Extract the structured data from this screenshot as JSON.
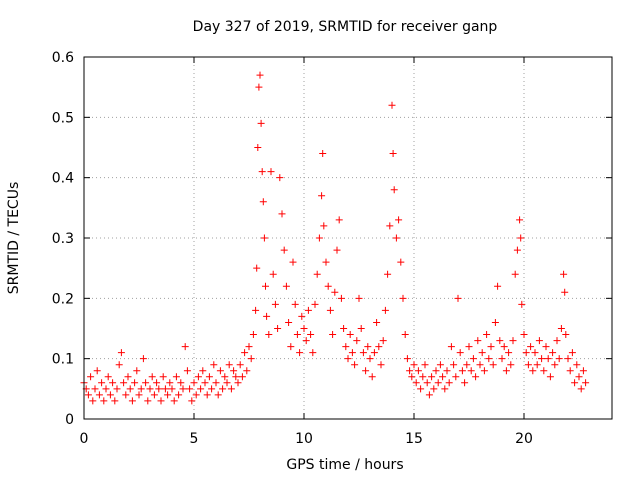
{
  "chart_data": {
    "type": "scatter",
    "title": "Day 327 of 2019, SRMTID for receiver ganp",
    "xlabel": "GPS time / hours",
    "ylabel": "SRMTID / TECUs",
    "xlim": [
      0,
      24
    ],
    "ylim": [
      0,
      0.6
    ],
    "xticks": [
      0,
      5,
      10,
      15,
      20
    ],
    "xtick_labels": [
      "0",
      "5",
      "10",
      "15",
      "20"
    ],
    "yticks": [
      0,
      0.1,
      0.2,
      0.3,
      0.4,
      0.5,
      0.6
    ],
    "ytick_labels": [
      "0",
      "0.1",
      "0.2",
      "0.3",
      "0.4",
      "0.5",
      "0.6"
    ],
    "grid": true,
    "marker": "+",
    "marker_color": "#ff0000",
    "series": [
      {
        "name": "SRMTID",
        "color": "#ff0000",
        "points": [
          [
            0.0,
            0.06
          ],
          [
            0.1,
            0.05
          ],
          [
            0.2,
            0.04
          ],
          [
            0.3,
            0.07
          ],
          [
            0.4,
            0.03
          ],
          [
            0.5,
            0.05
          ],
          [
            0.6,
            0.08
          ],
          [
            0.7,
            0.04
          ],
          [
            0.8,
            0.06
          ],
          [
            0.9,
            0.03
          ],
          [
            1.0,
            0.05
          ],
          [
            1.1,
            0.07
          ],
          [
            1.2,
            0.04
          ],
          [
            1.3,
            0.06
          ],
          [
            1.4,
            0.03
          ],
          [
            1.5,
            0.05
          ],
          [
            1.6,
            0.09
          ],
          [
            1.7,
            0.11
          ],
          [
            1.8,
            0.06
          ],
          [
            1.9,
            0.04
          ],
          [
            2.0,
            0.07
          ],
          [
            2.1,
            0.05
          ],
          [
            2.2,
            0.03
          ],
          [
            2.3,
            0.06
          ],
          [
            2.4,
            0.08
          ],
          [
            2.5,
            0.04
          ],
          [
            2.6,
            0.05
          ],
          [
            2.7,
            0.1
          ],
          [
            2.8,
            0.06
          ],
          [
            2.9,
            0.03
          ],
          [
            3.0,
            0.05
          ],
          [
            3.1,
            0.07
          ],
          [
            3.2,
            0.04
          ],
          [
            3.3,
            0.06
          ],
          [
            3.4,
            0.05
          ],
          [
            3.5,
            0.03
          ],
          [
            3.6,
            0.07
          ],
          [
            3.7,
            0.05
          ],
          [
            3.8,
            0.04
          ],
          [
            3.9,
            0.06
          ],
          [
            4.0,
            0.05
          ],
          [
            4.1,
            0.03
          ],
          [
            4.2,
            0.07
          ],
          [
            4.3,
            0.04
          ],
          [
            4.4,
            0.06
          ],
          [
            4.5,
            0.05
          ],
          [
            4.6,
            0.12
          ],
          [
            4.7,
            0.08
          ],
          [
            4.8,
            0.05
          ],
          [
            4.9,
            0.03
          ],
          [
            5.0,
            0.06
          ],
          [
            5.1,
            0.04
          ],
          [
            5.2,
            0.07
          ],
          [
            5.3,
            0.05
          ],
          [
            5.4,
            0.08
          ],
          [
            5.5,
            0.06
          ],
          [
            5.6,
            0.04
          ],
          [
            5.7,
            0.07
          ],
          [
            5.8,
            0.05
          ],
          [
            5.9,
            0.09
          ],
          [
            6.0,
            0.06
          ],
          [
            6.1,
            0.04
          ],
          [
            6.2,
            0.08
          ],
          [
            6.3,
            0.05
          ],
          [
            6.4,
            0.07
          ],
          [
            6.5,
            0.06
          ],
          [
            6.6,
            0.09
          ],
          [
            6.7,
            0.05
          ],
          [
            6.8,
            0.08
          ],
          [
            6.9,
            0.07
          ],
          [
            7.0,
            0.06
          ],
          [
            7.1,
            0.09
          ],
          [
            7.2,
            0.07
          ],
          [
            7.3,
            0.11
          ],
          [
            7.4,
            0.08
          ],
          [
            7.5,
            0.12
          ],
          [
            7.6,
            0.1
          ],
          [
            7.7,
            0.14
          ],
          [
            7.8,
            0.18
          ],
          [
            7.85,
            0.25
          ],
          [
            7.9,
            0.45
          ],
          [
            7.95,
            0.55
          ],
          [
            8.0,
            0.57
          ],
          [
            8.05,
            0.49
          ],
          [
            8.1,
            0.41
          ],
          [
            8.15,
            0.36
          ],
          [
            8.2,
            0.3
          ],
          [
            8.25,
            0.22
          ],
          [
            8.3,
            0.17
          ],
          [
            8.4,
            0.14
          ],
          [
            8.5,
            0.41
          ],
          [
            8.6,
            0.24
          ],
          [
            8.7,
            0.19
          ],
          [
            8.8,
            0.15
          ],
          [
            8.9,
            0.4
          ],
          [
            9.0,
            0.34
          ],
          [
            9.1,
            0.28
          ],
          [
            9.2,
            0.22
          ],
          [
            9.3,
            0.16
          ],
          [
            9.4,
            0.12
          ],
          [
            9.5,
            0.26
          ],
          [
            9.6,
            0.19
          ],
          [
            9.7,
            0.14
          ],
          [
            9.8,
            0.11
          ],
          [
            9.9,
            0.17
          ],
          [
            10.0,
            0.15
          ],
          [
            10.1,
            0.13
          ],
          [
            10.2,
            0.18
          ],
          [
            10.3,
            0.14
          ],
          [
            10.4,
            0.11
          ],
          [
            10.5,
            0.19
          ],
          [
            10.6,
            0.24
          ],
          [
            10.7,
            0.3
          ],
          [
            10.8,
            0.37
          ],
          [
            10.85,
            0.44
          ],
          [
            10.9,
            0.32
          ],
          [
            11.0,
            0.26
          ],
          [
            11.1,
            0.22
          ],
          [
            11.2,
            0.18
          ],
          [
            11.3,
            0.14
          ],
          [
            11.4,
            0.21
          ],
          [
            11.5,
            0.28
          ],
          [
            11.6,
            0.33
          ],
          [
            11.7,
            0.2
          ],
          [
            11.8,
            0.15
          ],
          [
            11.9,
            0.12
          ],
          [
            12.0,
            0.1
          ],
          [
            12.1,
            0.14
          ],
          [
            12.2,
            0.11
          ],
          [
            12.3,
            0.09
          ],
          [
            12.4,
            0.13
          ],
          [
            12.5,
            0.2
          ],
          [
            12.6,
            0.15
          ],
          [
            12.7,
            0.11
          ],
          [
            12.8,
            0.08
          ],
          [
            12.9,
            0.12
          ],
          [
            13.0,
            0.1
          ],
          [
            13.1,
            0.07
          ],
          [
            13.2,
            0.11
          ],
          [
            13.3,
            0.16
          ],
          [
            13.4,
            0.12
          ],
          [
            13.5,
            0.09
          ],
          [
            13.6,
            0.13
          ],
          [
            13.7,
            0.18
          ],
          [
            13.8,
            0.24
          ],
          [
            13.9,
            0.32
          ],
          [
            14.0,
            0.52
          ],
          [
            14.05,
            0.44
          ],
          [
            14.1,
            0.38
          ],
          [
            14.2,
            0.3
          ],
          [
            14.3,
            0.33
          ],
          [
            14.4,
            0.26
          ],
          [
            14.5,
            0.2
          ],
          [
            14.6,
            0.14
          ],
          [
            14.7,
            0.1
          ],
          [
            14.8,
            0.08
          ],
          [
            14.9,
            0.07
          ],
          [
            15.0,
            0.09
          ],
          [
            15.1,
            0.06
          ],
          [
            15.2,
            0.08
          ],
          [
            15.3,
            0.05
          ],
          [
            15.4,
            0.07
          ],
          [
            15.5,
            0.09
          ],
          [
            15.6,
            0.06
          ],
          [
            15.7,
            0.04
          ],
          [
            15.8,
            0.07
          ],
          [
            15.9,
            0.05
          ],
          [
            16.0,
            0.08
          ],
          [
            16.1,
            0.06
          ],
          [
            16.2,
            0.09
          ],
          [
            16.3,
            0.07
          ],
          [
            16.4,
            0.05
          ],
          [
            16.5,
            0.08
          ],
          [
            16.6,
            0.06
          ],
          [
            16.7,
            0.12
          ],
          [
            16.8,
            0.09
          ],
          [
            16.9,
            0.07
          ],
          [
            17.0,
            0.2
          ],
          [
            17.1,
            0.11
          ],
          [
            17.2,
            0.08
          ],
          [
            17.3,
            0.06
          ],
          [
            17.4,
            0.09
          ],
          [
            17.5,
            0.12
          ],
          [
            17.6,
            0.08
          ],
          [
            17.7,
            0.1
          ],
          [
            17.8,
            0.07
          ],
          [
            17.9,
            0.13
          ],
          [
            18.0,
            0.09
          ],
          [
            18.1,
            0.11
          ],
          [
            18.2,
            0.08
          ],
          [
            18.3,
            0.14
          ],
          [
            18.4,
            0.1
          ],
          [
            18.5,
            0.12
          ],
          [
            18.6,
            0.09
          ],
          [
            18.7,
            0.16
          ],
          [
            18.8,
            0.22
          ],
          [
            18.9,
            0.13
          ],
          [
            19.0,
            0.1
          ],
          [
            19.1,
            0.12
          ],
          [
            19.2,
            0.08
          ],
          [
            19.3,
            0.11
          ],
          [
            19.4,
            0.09
          ],
          [
            19.5,
            0.13
          ],
          [
            19.6,
            0.24
          ],
          [
            19.7,
            0.28
          ],
          [
            19.8,
            0.33
          ],
          [
            19.85,
            0.3
          ],
          [
            19.9,
            0.19
          ],
          [
            20.0,
            0.14
          ],
          [
            20.1,
            0.11
          ],
          [
            20.2,
            0.09
          ],
          [
            20.3,
            0.12
          ],
          [
            20.4,
            0.08
          ],
          [
            20.5,
            0.11
          ],
          [
            20.6,
            0.09
          ],
          [
            20.7,
            0.13
          ],
          [
            20.8,
            0.1
          ],
          [
            20.9,
            0.08
          ],
          [
            21.0,
            0.12
          ],
          [
            21.1,
            0.1
          ],
          [
            21.2,
            0.07
          ],
          [
            21.3,
            0.11
          ],
          [
            21.4,
            0.09
          ],
          [
            21.5,
            0.13
          ],
          [
            21.6,
            0.1
          ],
          [
            21.7,
            0.15
          ],
          [
            21.8,
            0.24
          ],
          [
            21.85,
            0.21
          ],
          [
            21.9,
            0.14
          ],
          [
            22.0,
            0.1
          ],
          [
            22.1,
            0.08
          ],
          [
            22.2,
            0.11
          ],
          [
            22.3,
            0.06
          ],
          [
            22.4,
            0.09
          ],
          [
            22.5,
            0.07
          ],
          [
            22.6,
            0.05
          ],
          [
            22.7,
            0.08
          ],
          [
            22.8,
            0.06
          ]
        ]
      }
    ]
  }
}
